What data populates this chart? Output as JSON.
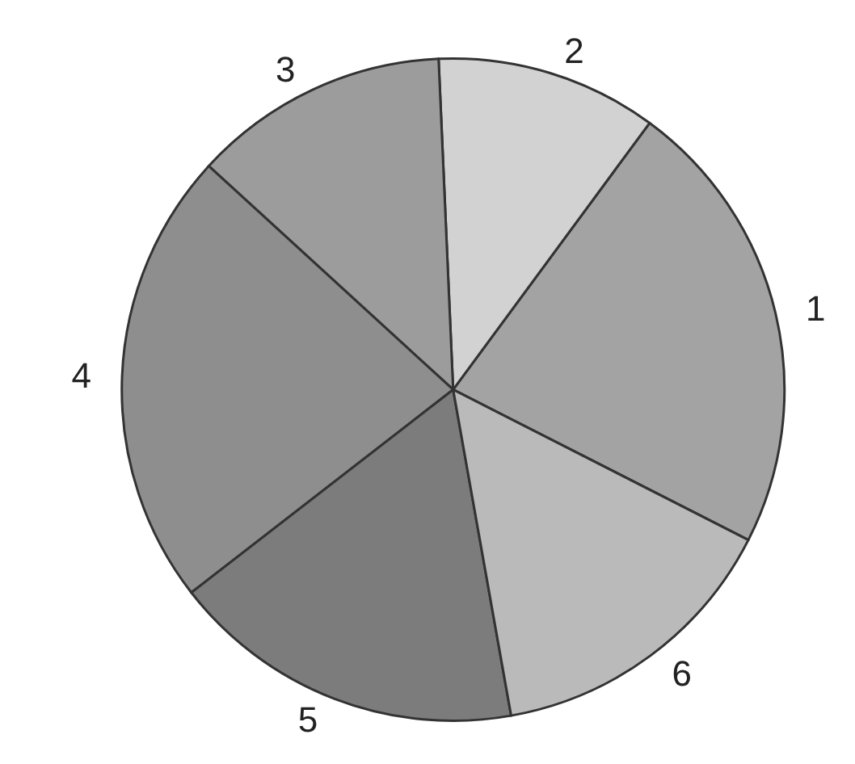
{
  "chart_data": {
    "type": "pie",
    "categories": [
      "1",
      "2",
      "3",
      "4",
      "5",
      "6"
    ],
    "values": [
      22.4,
      10.8,
      12.5,
      22.3,
      17.3,
      14.7
    ],
    "colors": [
      "#a3a3a3",
      "#d2d2d2",
      "#9c9c9c",
      "#8e8e8e",
      "#7c7c7c",
      "#bababa"
    ]
  }
}
